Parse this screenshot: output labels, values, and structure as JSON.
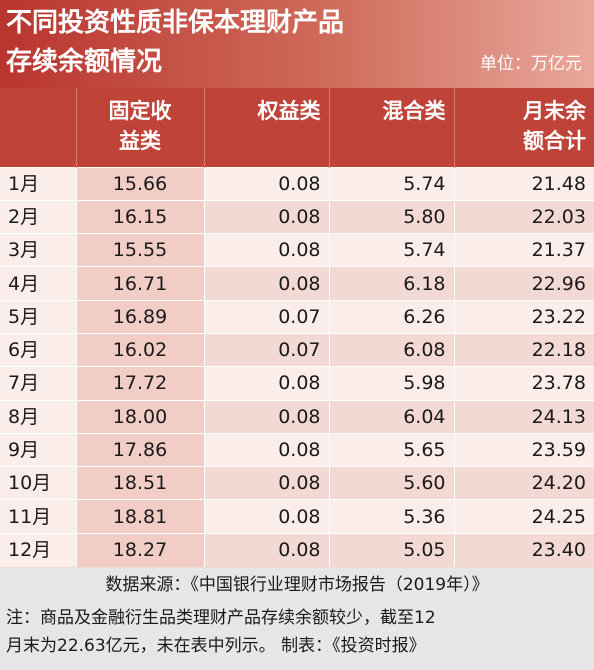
{
  "header": {
    "title_line1": "不同投资性质非保本理财产品",
    "title_line2": "存续余额情况",
    "unit": "单位：万亿元"
  },
  "chart_data": {
    "type": "table",
    "columns": [
      {
        "lines": [
          "",
          ""
        ]
      },
      {
        "lines": [
          "固定收",
          "益类"
        ]
      },
      {
        "lines": [
          "权益类",
          ""
        ]
      },
      {
        "lines": [
          "混合类",
          ""
        ]
      },
      {
        "lines": [
          "月末余",
          "额合计"
        ]
      }
    ],
    "rows": [
      [
        "1月",
        "15.66",
        "0.08",
        "5.74",
        "21.48"
      ],
      [
        "2月",
        "16.15",
        "0.08",
        "5.80",
        "22.03"
      ],
      [
        "3月",
        "15.55",
        "0.08",
        "5.74",
        "21.37"
      ],
      [
        "4月",
        "16.71",
        "0.08",
        "6.18",
        "22.96"
      ],
      [
        "5月",
        "16.89",
        "0.07",
        "6.26",
        "23.22"
      ],
      [
        "6月",
        "16.02",
        "0.07",
        "6.08",
        "22.18"
      ],
      [
        "7月",
        "17.72",
        "0.08",
        "5.98",
        "23.78"
      ],
      [
        "8月",
        "18.00",
        "0.08",
        "6.04",
        "24.13"
      ],
      [
        "9月",
        "17.86",
        "0.08",
        "5.65",
        "23.59"
      ],
      [
        "10月",
        "18.51",
        "0.08",
        "5.60",
        "24.20"
      ],
      [
        "11月",
        "18.81",
        "0.08",
        "5.36",
        "24.25"
      ],
      [
        "12月",
        "18.27",
        "0.08",
        "5.05",
        "23.40"
      ]
    ]
  },
  "footer": {
    "source": "数据来源：《中国银行业理财市场报告（2019年）》",
    "note_line1": "注：商品及金融衍生品类理财产品存续余额较少，截至12",
    "note_line2": "月末为22.63亿元，未在表中列示。  制表：《投资时报》"
  },
  "colors": {
    "header_red": "#b9352f",
    "table_header": "#c0433a",
    "fixed_income_column": "#f1cdc6",
    "footer_gray": "#e6e6e6"
  }
}
